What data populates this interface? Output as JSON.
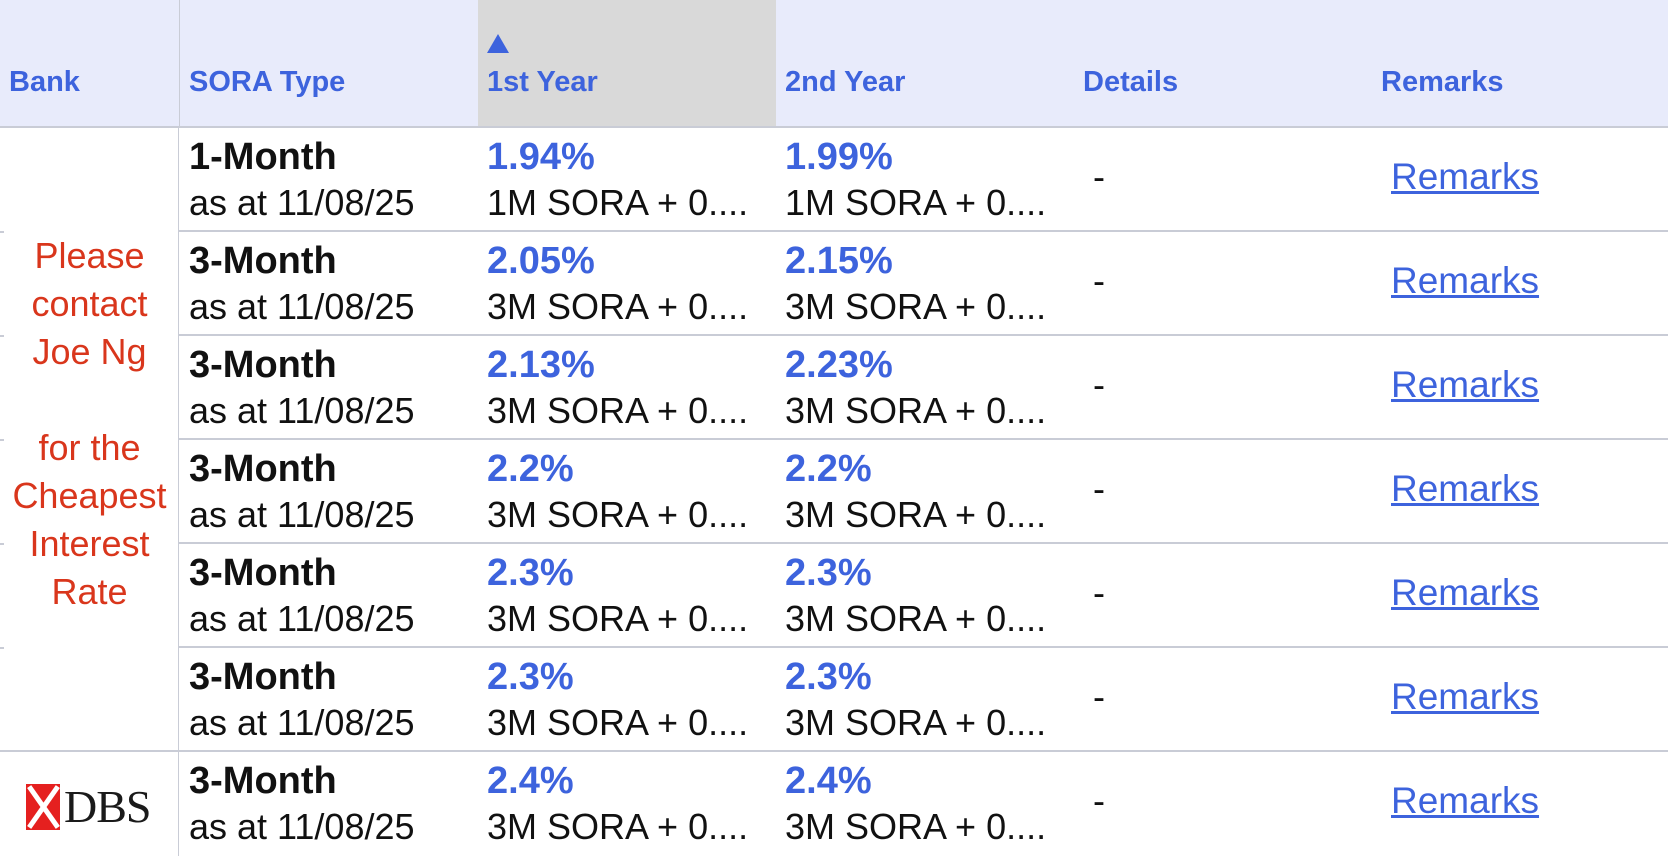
{
  "header": {
    "bank": "Bank",
    "sora_type": "SORA Type",
    "year1": "1st Year",
    "year2": "2nd Year",
    "details": "Details",
    "remarks": "Remarks",
    "sorted_column": "year1",
    "sort_direction": "ascending"
  },
  "bank_merged": {
    "lines": [
      "Please",
      "contact",
      "Joe Ng",
      "for the",
      "Cheapest",
      "Interest",
      "Rate"
    ]
  },
  "dbs": {
    "logo_text": "DBS"
  },
  "rows": [
    {
      "type": "1-Month",
      "as_at": "as at 11/08/25",
      "y1_rate": "1.94%",
      "y1_formula": "1M SORA + 0....",
      "y2_rate": "1.99%",
      "y2_formula": "1M SORA + 0....",
      "details": "-",
      "remarks": "Remarks"
    },
    {
      "type": "3-Month",
      "as_at": "as at 11/08/25",
      "y1_rate": "2.05%",
      "y1_formula": "3M SORA + 0....",
      "y2_rate": "2.15%",
      "y2_formula": "3M SORA + 0....",
      "details": "-",
      "remarks": "Remarks"
    },
    {
      "type": "3-Month",
      "as_at": "as at 11/08/25",
      "y1_rate": "2.13%",
      "y1_formula": "3M SORA + 0....",
      "y2_rate": "2.23%",
      "y2_formula": "3M SORA + 0....",
      "details": "-",
      "remarks": "Remarks"
    },
    {
      "type": "3-Month",
      "as_at": "as at 11/08/25",
      "y1_rate": "2.2%",
      "y1_formula": "3M SORA + 0....",
      "y2_rate": "2.2%",
      "y2_formula": "3M SORA + 0....",
      "details": "-",
      "remarks": "Remarks"
    },
    {
      "type": "3-Month",
      "as_at": "as at 11/08/25",
      "y1_rate": "2.3%",
      "y1_formula": "3M SORA + 0....",
      "y2_rate": "2.3%",
      "y2_formula": "3M SORA + 0....",
      "details": "-",
      "remarks": "Remarks"
    },
    {
      "type": "3-Month",
      "as_at": "as at 11/08/25",
      "y1_rate": "2.3%",
      "y1_formula": "3M SORA + 0....",
      "y2_rate": "2.3%",
      "y2_formula": "3M SORA + 0....",
      "details": "-",
      "remarks": "Remarks"
    },
    {
      "type": "3-Month",
      "as_at": "as at 11/08/25",
      "y1_rate": "2.4%",
      "y1_formula": "3M SORA + 0....",
      "y2_rate": "2.4%",
      "y2_formula": "3M SORA + 0....",
      "details": "-",
      "remarks": "Remarks"
    }
  ],
  "colors": {
    "header_bg": "#e8ebfb",
    "accent": "#3d63dd",
    "contact_red": "#d9361c",
    "sorted_bg": "#d9d9d9",
    "dbs_red": "#e5201f"
  }
}
